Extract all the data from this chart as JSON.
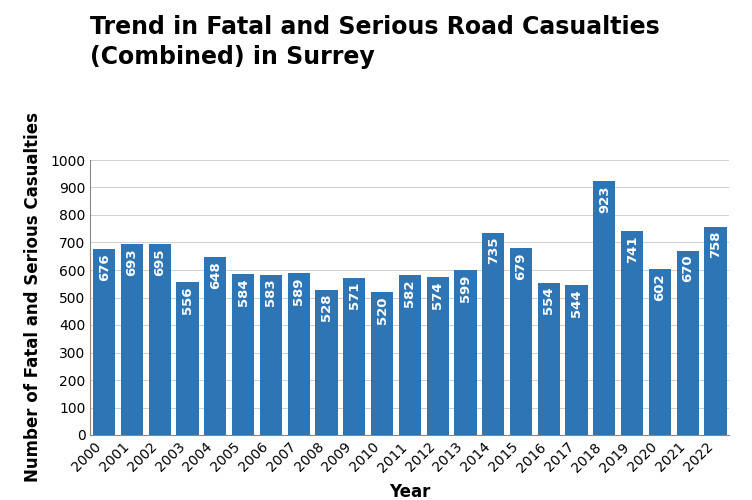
{
  "title_line1": "Trend in Fatal and Serious Road Casualties",
  "title_line2": "(Combined) in Surrey",
  "xlabel": "Year",
  "ylabel": "Number of Fatal and Serious Casualties",
  "years": [
    2000,
    2001,
    2002,
    2003,
    2004,
    2005,
    2006,
    2007,
    2008,
    2009,
    2010,
    2011,
    2012,
    2013,
    2014,
    2015,
    2016,
    2017,
    2018,
    2019,
    2020,
    2021,
    2022
  ],
  "values": [
    676,
    693,
    695,
    556,
    648,
    584,
    583,
    589,
    528,
    571,
    520,
    582,
    574,
    599,
    735,
    679,
    554,
    544,
    923,
    741,
    602,
    670,
    758
  ],
  "bar_color": "#2E75B6",
  "label_color": "#FFFFFF",
  "ylim": [
    0,
    1000
  ],
  "yticks": [
    0,
    100,
    200,
    300,
    400,
    500,
    600,
    700,
    800,
    900,
    1000
  ],
  "title_fontsize": 17,
  "axis_label_fontsize": 12,
  "tick_fontsize": 10,
  "bar_label_fontsize": 9.5,
  "background_color": "#FFFFFF",
  "grid_color": "#D0D0D0"
}
